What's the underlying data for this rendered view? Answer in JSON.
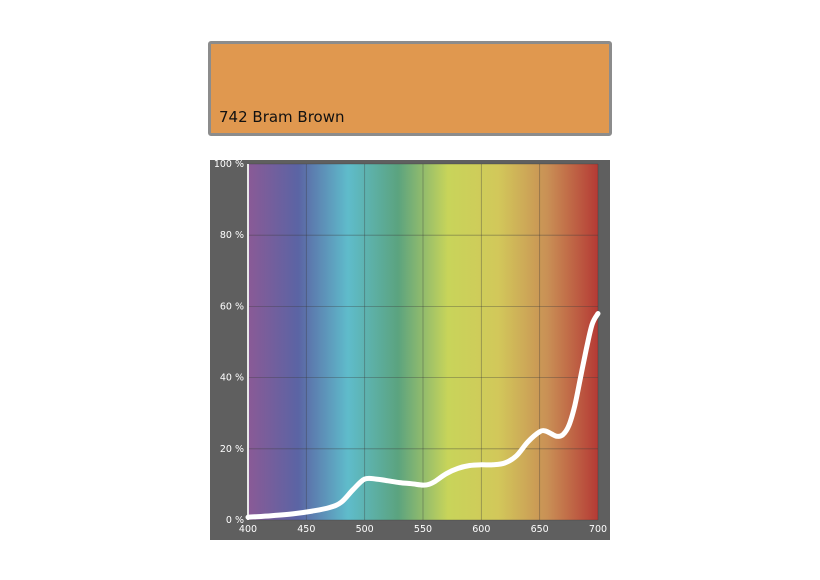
{
  "swatch": {
    "label": "742 Bram Brown",
    "color": "#e0984f"
  },
  "chart_data": {
    "type": "line",
    "title": "",
    "xlabel": "",
    "ylabel": "",
    "xlim": [
      400,
      700
    ],
    "ylim": [
      0,
      100
    ],
    "grid": true,
    "x_ticks": [
      400,
      450,
      500,
      550,
      600,
      650,
      700
    ],
    "x_tick_labels": [
      "400",
      "450",
      "500",
      "550",
      "600",
      "650",
      "700"
    ],
    "y_ticks": [
      0,
      20,
      40,
      60,
      80,
      100
    ],
    "y_tick_labels": [
      "0 %",
      "20 %",
      "40 %",
      "60 %",
      "80 %",
      "100 %"
    ],
    "series": [
      {
        "x": [
          400,
          420,
          440,
          455,
          470,
          480,
          490,
          500,
          510,
          520,
          530,
          540,
          550,
          555,
          560,
          570,
          580,
          590,
          600,
          610,
          620,
          630,
          640,
          650,
          655,
          660,
          665,
          670,
          675,
          680,
          685,
          690,
          695,
          700
        ],
        "y": [
          0.8,
          1.2,
          1.8,
          2.5,
          3.5,
          5,
          8.5,
          11.5,
          11.5,
          11,
          10.5,
          10.2,
          9.8,
          10,
          10.8,
          13,
          14.5,
          15.3,
          15.5,
          15.5,
          16,
          18,
          22,
          24.8,
          25,
          24.2,
          23.5,
          24,
          26.5,
          32,
          40,
          48,
          55,
          58
        ]
      }
    ],
    "colors": {
      "line": "#ffffff",
      "frame": "#5f5f5f",
      "spectrum": [
        "#8a5a96",
        "#5b64a4",
        "#5fbccb",
        "#5ba37f",
        "#c8d45a",
        "#d2c85a",
        "#c98f55",
        "#b53a35"
      ]
    }
  }
}
